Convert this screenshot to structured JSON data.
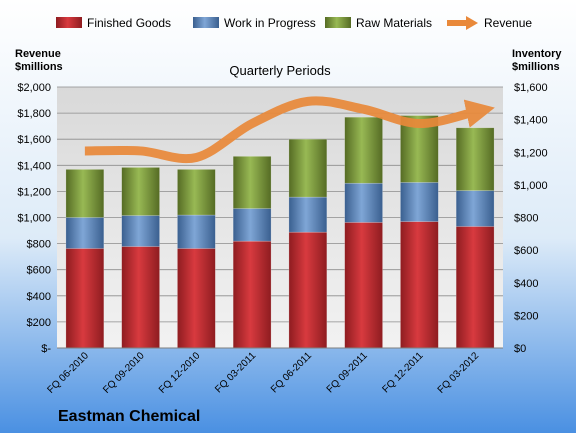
{
  "company": "Eastman Chemical",
  "chart_data": {
    "type": "bar",
    "title": "Quarterly Periods",
    "categories": [
      "FQ 06-2010",
      "FQ 09-2010",
      "FQ 12-2010",
      "FQ 03-2011",
      "FQ 06-2011",
      "FQ 09-2011",
      "FQ 12-2011",
      "FQ 03-2012"
    ],
    "series": [
      {
        "name": "Finished Goods",
        "color": "#C0282D",
        "values": [
          610,
          622,
          610,
          655,
          710,
          770,
          775,
          745
        ]
      },
      {
        "name": "Work in Progress",
        "color": "#4F81BD",
        "values": [
          190,
          190,
          205,
          200,
          215,
          240,
          240,
          220
        ]
      },
      {
        "name": "Raw Materials",
        "color": "#77933C",
        "values": [
          295,
          295,
          280,
          320,
          355,
          405,
          410,
          385
        ]
      }
    ],
    "line_series": {
      "name": "Revenue",
      "color": "#E9893A",
      "values": [
        1510,
        1510,
        1460,
        1720,
        1890,
        1830,
        1720,
        1810
      ]
    },
    "y_left": {
      "label_line1": "Revenue",
      "label_line2": "$millions",
      "ylim": [
        0,
        2000
      ],
      "ticks": [
        "$-",
        "$200",
        "$400",
        "$600",
        "$800",
        "$1,000",
        "$1,200",
        "$1,400",
        "$1,600",
        "$1,800",
        "$2,000"
      ]
    },
    "y_right": {
      "label_line1": "Inventory",
      "label_line2": "$millions",
      "ylim": [
        0,
        1600
      ],
      "ticks": [
        "$0",
        "$200",
        "$400",
        "$600",
        "$800",
        "$1,000",
        "$1,200",
        "$1,400",
        "$1,600"
      ]
    },
    "legend_position": "top",
    "grid": true
  }
}
